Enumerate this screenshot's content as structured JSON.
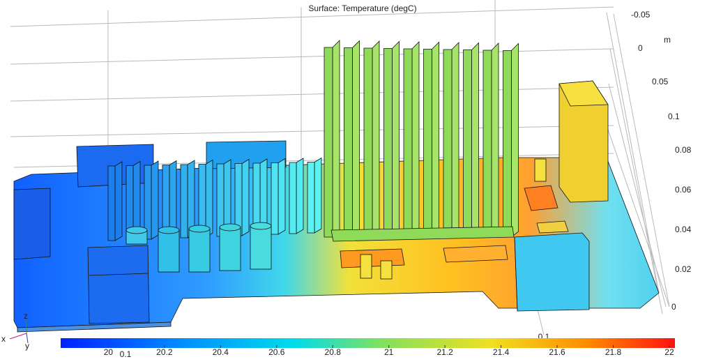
{
  "title": "Surface: Temperature (degC)",
  "axis_unit": "m",
  "axis_labels": [
    "-0.05",
    "0",
    "0.05",
    "0.1",
    "0.08",
    "0.06",
    "0.04",
    "0.02",
    "0"
  ],
  "x_axis_labels": [
    "0.1",
    "0.1"
  ],
  "triad": [
    "z",
    "x",
    "y"
  ],
  "colorbar": {
    "range": [
      19.83,
      22.02
    ],
    "ticks": [
      20,
      20.2,
      20.4,
      20.6,
      20.8,
      21,
      21.2,
      21.4,
      21.6,
      21.8,
      22
    ]
  }
}
